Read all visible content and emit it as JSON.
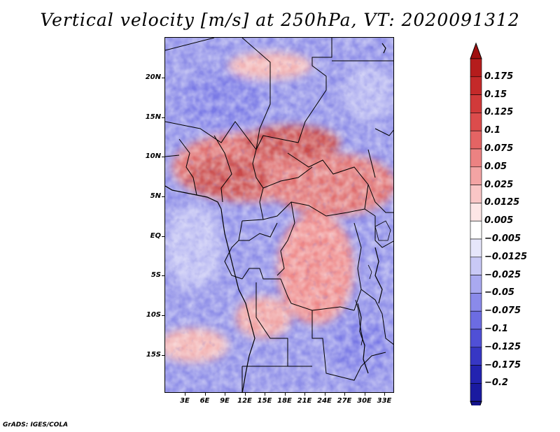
{
  "title": "Vertical velocity [m/s] at 250hPa, VT: 2020091312",
  "credit": "GrADS: IGES/COLA",
  "map": {
    "lat_labels": [
      "20N",
      "15N",
      "10N",
      "5N",
      "EQ",
      "5S",
      "10S",
      "15S"
    ],
    "lon_labels": [
      "3E",
      "6E",
      "9E",
      "12E",
      "15E",
      "18E",
      "21E",
      "24E",
      "27E",
      "30E",
      "33E"
    ]
  },
  "colorbar": {
    "labels": [
      "0.175",
      "0.15",
      "0.125",
      "0.1",
      "0.075",
      "0.05",
      "0.025",
      "0.0125",
      "0.005",
      "−0.005",
      "−0.0125",
      "−0.025",
      "−0.05",
      "−0.075",
      "−0.1",
      "−0.125",
      "−0.175",
      "−0.2"
    ],
    "colors": [
      "#b51c1c",
      "#c42a2a",
      "#d13a3a",
      "#dc4c4c",
      "#e46464",
      "#ec8282",
      "#f3a4a4",
      "#f9c6c6",
      "#fde6e6",
      "#ffffff",
      "#e6e6fb",
      "#c9c9f6",
      "#a9a9f0",
      "#8a8aea",
      "#6c6ce2",
      "#5050d6",
      "#3737c4",
      "#2323b0",
      "#1a1aa0"
    ],
    "top_arrow_color": "#a01010",
    "bottom_arrow_color": "#14148c"
  }
}
